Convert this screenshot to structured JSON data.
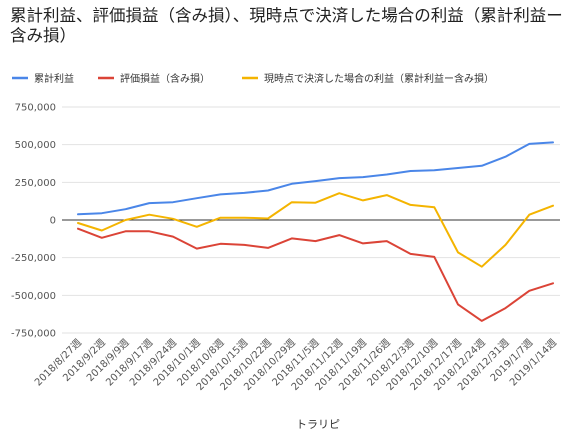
{
  "chart_data": {
    "type": "line",
    "title": "累計利益、評価損益（含み損）、現時点で決済した場合の利益（累計利益ー含み損）",
    "xlabel": "トラリピ",
    "ylabel": "",
    "ylim": [
      -750000,
      750000
    ],
    "yticks": [
      750000,
      500000,
      250000,
      0,
      -250000,
      -500000,
      -750000
    ],
    "ytick_labels": [
      "750,000",
      "500,000",
      "250,000",
      "0",
      "-250,000",
      "-500,000",
      "-750,000"
    ],
    "grid": "horizontal",
    "legend_position": "top-left",
    "categories": [
      "2018/8/27週",
      "2018/9/2週",
      "2018/9/9週",
      "2018/9/17週",
      "2018/9/24週",
      "2018/10/1週",
      "2018/10/8週",
      "2018/10/15週",
      "2018/10/22週",
      "2018/10/29週",
      "2018/11/5週",
      "2018/11/12週",
      "2018/11/19週",
      "2018/11/26週",
      "2018/12/3週",
      "2018/12/10週",
      "2018/12/17週",
      "2018/12/24週",
      "2018/12/31週",
      "2019/1/7週",
      "2019/1/14週"
    ],
    "series": [
      {
        "name": "累計利益",
        "color": "#4a86e8",
        "values": [
          38000,
          45000,
          72000,
          112000,
          118000,
          145000,
          170000,
          180000,
          196000,
          240000,
          258000,
          278000,
          285000,
          302000,
          325000,
          330000,
          345000,
          360000,
          420000,
          505000,
          515000
        ]
      },
      {
        "name": "評価損益（含み損）",
        "color": "#db4437",
        "values": [
          -58000,
          -118000,
          -75000,
          -75000,
          -110000,
          -190000,
          -158000,
          -165000,
          -185000,
          -122000,
          -140000,
          -100000,
          -155000,
          -140000,
          -225000,
          -245000,
          -560000,
          -670000,
          -585000,
          -470000,
          -420000
        ]
      },
      {
        "name": "現時点で決済した場合の利益（累計利益ー含み損）",
        "color": "#f4b400",
        "values": [
          -20000,
          -70000,
          0,
          35000,
          8000,
          -45000,
          15000,
          15000,
          10000,
          118000,
          115000,
          178000,
          130000,
          165000,
          100000,
          85000,
          -215000,
          -310000,
          -165000,
          35000,
          95000
        ]
      }
    ]
  }
}
